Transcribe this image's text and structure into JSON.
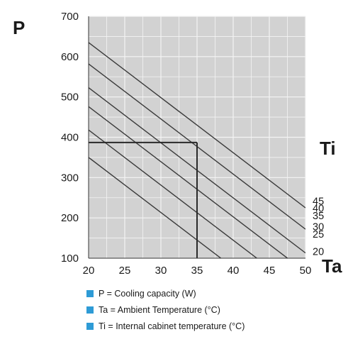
{
  "chart_data": {
    "type": "line",
    "ylabel": "P",
    "xlabel": "Ta",
    "legend_title": "Ti",
    "xlim": [
      20,
      50
    ],
    "ylim": [
      100,
      700
    ],
    "x_ticks": [
      "20",
      "25",
      "30",
      "35",
      "40",
      "45",
      "50"
    ],
    "y_ticks": [
      "100",
      "200",
      "300",
      "400",
      "500",
      "600",
      "700"
    ],
    "grid": true,
    "series": [
      {
        "name": "45",
        "x": [
          20,
          50
        ],
        "y": [
          635,
          225
        ]
      },
      {
        "name": "40",
        "x": [
          20,
          50
        ],
        "y": [
          582,
          172
        ]
      },
      {
        "name": "35",
        "x": [
          20,
          50
        ],
        "y": [
          523,
          113
        ]
      },
      {
        "name": "30",
        "x": [
          20,
          50
        ],
        "y": [
          476,
          66
        ]
      },
      {
        "name": "25",
        "x": [
          20,
          50
        ],
        "y": [
          418,
          8
        ]
      },
      {
        "name": "20",
        "x": [
          20,
          50
        ],
        "y": [
          350,
          -60
        ]
      }
    ],
    "series_label_positions": [
      {
        "name": "45",
        "y": 242
      },
      {
        "name": "40",
        "y": 224
      },
      {
        "name": "35",
        "y": 206
      },
      {
        "name": "30",
        "y": 178
      },
      {
        "name": "25",
        "y": 160
      },
      {
        "name": "20",
        "y": 117
      }
    ],
    "reference": {
      "x": 35,
      "y": 387
    },
    "colors": {
      "plot_bg": "#d2d2d2",
      "grid": "#f4f4f4",
      "line": "#3a3a3a",
      "legend_marker": "#2e9bd6"
    }
  },
  "legend_items": [
    "P = Cooling capacity (W)",
    "Ta = Ambient Temperature (°C)",
    "Ti = Internal cabinet temperature (°C)"
  ]
}
